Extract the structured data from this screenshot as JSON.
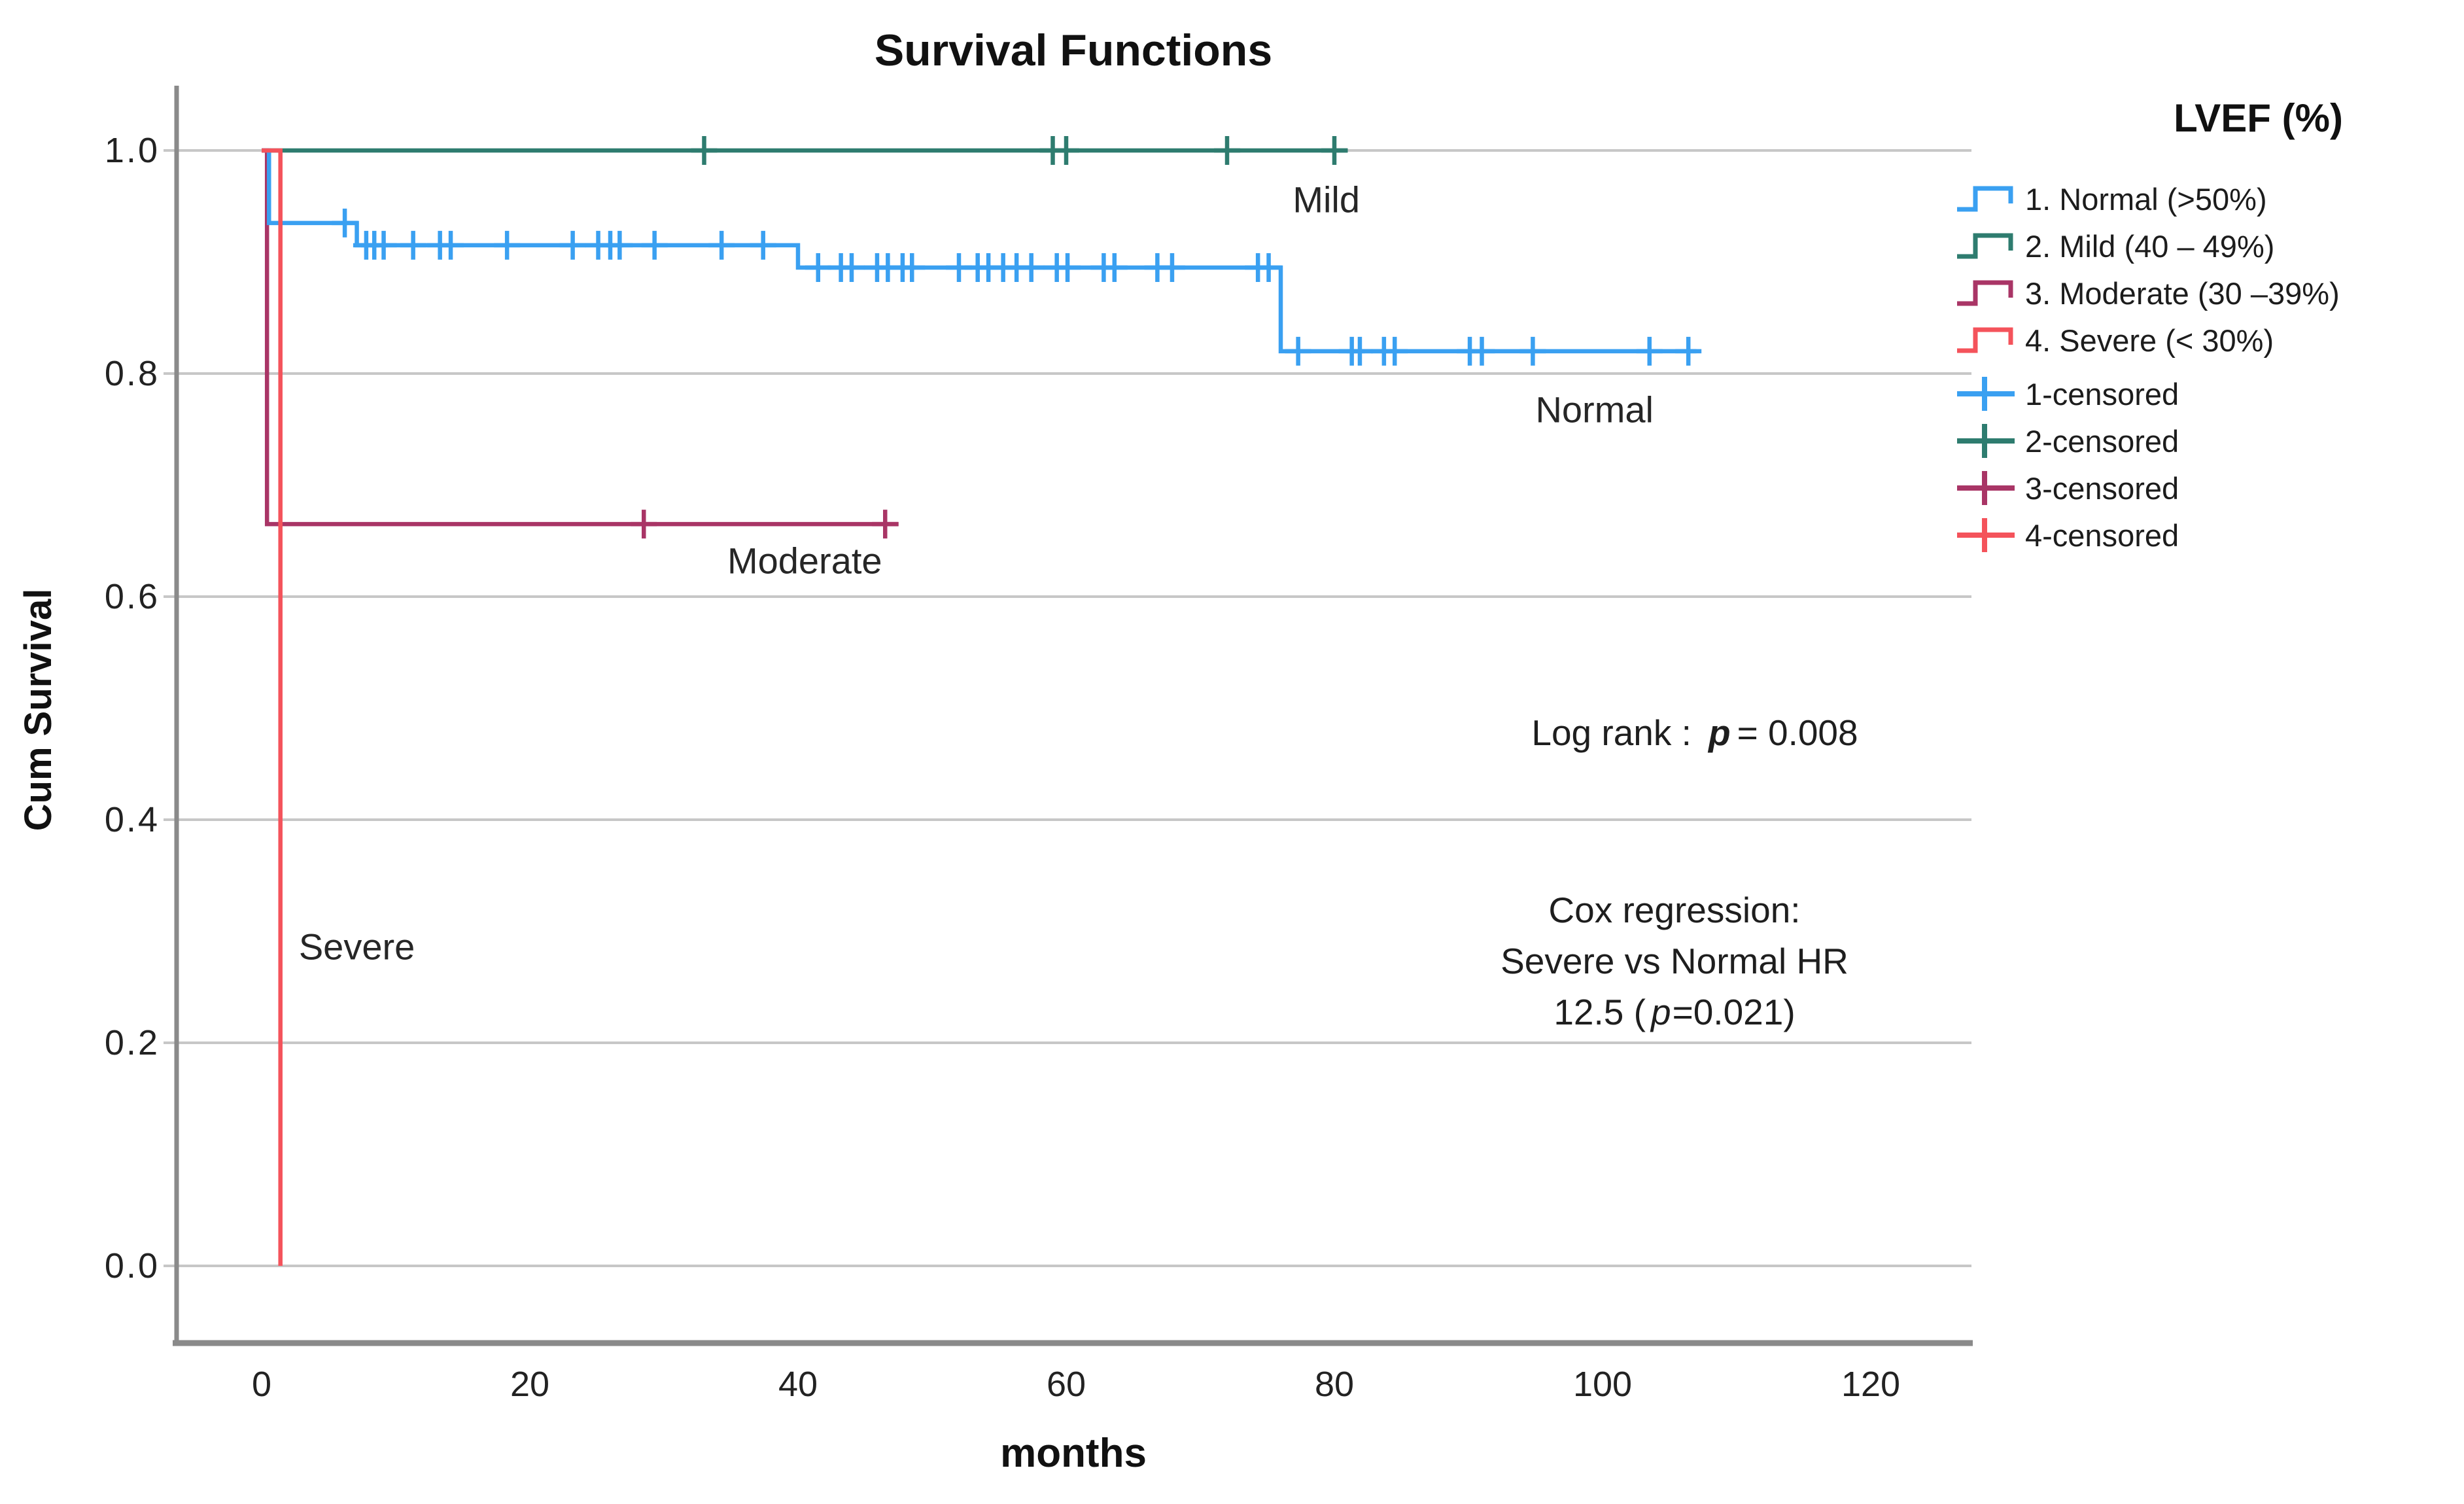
{
  "title": "Survival Functions",
  "x_axis_title": "months",
  "y_axis_title": "Cum Survival",
  "colors": {
    "normal": "#3AA0F1",
    "mild": "#2E7C6F",
    "moderate": "#A93566",
    "severe": "#F4535B",
    "grid": "#C7C7C7",
    "axis": "#8A8A8A",
    "text": "#1E1E1E"
  },
  "chart_data": {
    "type": "line",
    "subtype": "kaplan-meier-step",
    "title": "Survival Functions",
    "xlabel": "months",
    "ylabel": "Cum Survival",
    "xlim": [
      0,
      120
    ],
    "ylim": [
      0.0,
      1.0
    ],
    "grid": "horizontal-only",
    "legend_position": "right",
    "x_axis": {
      "ticks": [
        0,
        20,
        40,
        60,
        80,
        100,
        120
      ]
    },
    "y_axis": {
      "ticks": [
        {
          "value": 1.0,
          "label": "1.0"
        },
        {
          "value": 0.8,
          "label": "0.8"
        },
        {
          "value": 0.6,
          "label": "0.6"
        },
        {
          "value": 0.4,
          "label": "0.4"
        },
        {
          "value": 0.2,
          "label": "0.2"
        },
        {
          "value": 0.0,
          "label": "0.0"
        }
      ]
    },
    "series": [
      {
        "key": "mild",
        "name": "2. Mild (40 – 49%)",
        "color": "#2E7C6F",
        "steps": [
          [
            0,
            1.0
          ]
        ],
        "end": 81,
        "censored": [
          [
            33,
            1.0
          ],
          [
            59,
            1.0
          ],
          [
            60,
            1.0
          ],
          [
            72,
            1.0
          ],
          [
            80,
            1.0
          ]
        ]
      },
      {
        "key": "moderate",
        "name": "3. Moderate (30 –39%)",
        "color": "#A93566",
        "steps": [
          [
            0,
            1.0
          ],
          [
            0.4,
            0.665
          ]
        ],
        "end": 47.5,
        "censored": [
          [
            28.5,
            0.665
          ],
          [
            46.5,
            0.665
          ]
        ]
      },
      {
        "key": "normal",
        "name": "1. Normal (>50%)",
        "color": "#3AA0F1",
        "steps": [
          [
            0,
            1.0
          ],
          [
            0.55,
            0.935
          ],
          [
            7.1,
            0.915
          ],
          [
            40,
            0.895
          ],
          [
            76,
            0.82
          ]
        ],
        "end": 107,
        "censored": [
          [
            6.2,
            0.935
          ],
          [
            7.8,
            0.915
          ],
          [
            8.4,
            0.915
          ],
          [
            9.1,
            0.915
          ],
          [
            11.3,
            0.915
          ],
          [
            13.3,
            0.915
          ],
          [
            14.1,
            0.915
          ],
          [
            18.3,
            0.915
          ],
          [
            23.2,
            0.915
          ],
          [
            25.1,
            0.915
          ],
          [
            26.0,
            0.915
          ],
          [
            26.7,
            0.915
          ],
          [
            29.3,
            0.915
          ],
          [
            34.3,
            0.915
          ],
          [
            37.4,
            0.915
          ],
          [
            41.5,
            0.895
          ],
          [
            43.2,
            0.895
          ],
          [
            44.0,
            0.895
          ],
          [
            45.9,
            0.895
          ],
          [
            46.7,
            0.895
          ],
          [
            47.8,
            0.895
          ],
          [
            48.5,
            0.895
          ],
          [
            52.0,
            0.895
          ],
          [
            53.4,
            0.895
          ],
          [
            54.2,
            0.895
          ],
          [
            55.3,
            0.895
          ],
          [
            56.3,
            0.895
          ],
          [
            57.4,
            0.895
          ],
          [
            59.3,
            0.895
          ],
          [
            60.1,
            0.895
          ],
          [
            62.8,
            0.895
          ],
          [
            63.6,
            0.895
          ],
          [
            66.8,
            0.895
          ],
          [
            67.9,
            0.895
          ],
          [
            74.3,
            0.895
          ],
          [
            75.1,
            0.895
          ],
          [
            77.3,
            0.82
          ],
          [
            81.3,
            0.82
          ],
          [
            81.9,
            0.82
          ],
          [
            83.7,
            0.82
          ],
          [
            84.5,
            0.82
          ],
          [
            90.1,
            0.82
          ],
          [
            91.0,
            0.82
          ],
          [
            94.8,
            0.82
          ],
          [
            103.5,
            0.82
          ],
          [
            106.4,
            0.82
          ]
        ]
      },
      {
        "key": "severe",
        "name": "4. Severe (< 30%)",
        "color": "#F4535B",
        "steps": [
          [
            0,
            1.0
          ],
          [
            1.4,
            0.0
          ]
        ],
        "end": 1.4,
        "censored": []
      }
    ],
    "curve_labels": [
      {
        "id": "mild",
        "text": "Mild",
        "month": 79.4,
        "value": 0.956
      },
      {
        "id": "normal",
        "text": "Normal",
        "month": 99.4,
        "value": 0.768
      },
      {
        "id": "moderate",
        "text": "Moderate",
        "month": 40.5,
        "value": 0.632
      },
      {
        "id": "severe",
        "text": "Severe",
        "month": 7.1,
        "value": 0.286
      }
    ]
  },
  "stats": {
    "log_rank": {
      "prefix": "Log rank :",
      "p": "p",
      "suffix": "= 0.008"
    },
    "cox": {
      "line1": "Cox regression:",
      "line2": "Severe vs Normal HR",
      "line3_pre": "12.5 (",
      "p": "p",
      "line3_post": "=0.021)"
    }
  },
  "legend": {
    "title": "LVEF (%)",
    "items": [
      {
        "label": "1. Normal (>50%)",
        "color": "#3AA0F1",
        "glyph": "step"
      },
      {
        "label": "2. Mild (40 – 49%)",
        "color": "#2E7C6F",
        "glyph": "step"
      },
      {
        "label": "3. Moderate (30 –39%)",
        "color": "#A93566",
        "glyph": "step"
      },
      {
        "label": "4. Severe (< 30%)",
        "color": "#F4535B",
        "glyph": "step"
      },
      {
        "label": "1-censored",
        "color": "#3AA0F1",
        "glyph": "plus"
      },
      {
        "label": "2-censored",
        "color": "#2E7C6F",
        "glyph": "plus"
      },
      {
        "label": "3-censored",
        "color": "#A93566",
        "glyph": "plus"
      },
      {
        "label": "4-censored",
        "color": "#F4535B",
        "glyph": "plus"
      }
    ]
  }
}
